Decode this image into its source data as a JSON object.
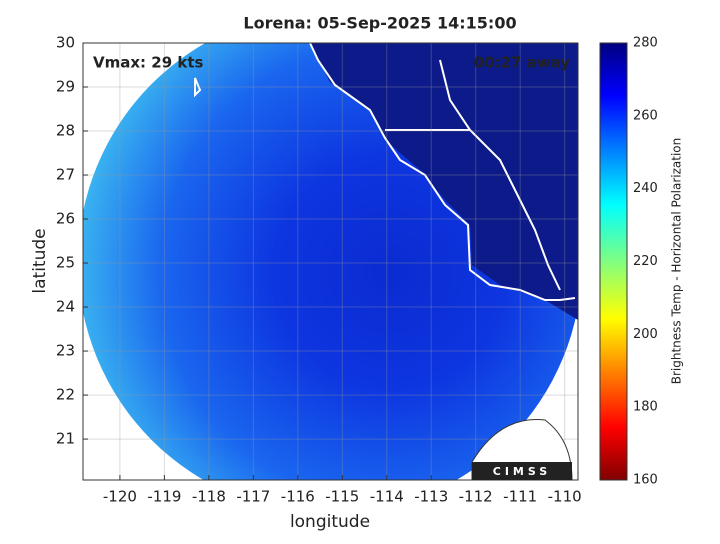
{
  "chart_data": {
    "type": "map",
    "title": "Lorena: 05-Sep-2025 14:15:00",
    "annotations": [
      "Vmax: 29 kts",
      "00:27 away"
    ],
    "x_label": "longitude",
    "y_label": "latitude",
    "xlim": [
      -120.83,
      -109.7
    ],
    "ylim": [
      20.07,
      30
    ],
    "xticks": [
      -120,
      -119,
      -118,
      -117,
      -116,
      -115,
      -114,
      -113,
      -112,
      -111,
      -110
    ],
    "yticks": [
      21,
      22,
      23,
      24,
      25,
      26,
      27,
      28,
      29,
      30
    ],
    "grid": true,
    "colorbar": {
      "label": "Brightness Temp - Horizontal Polarization",
      "lim": [
        160,
        280
      ],
      "ticks": [
        160,
        180,
        200,
        220,
        240,
        260,
        280
      ]
    },
    "logo": "CIMSS"
  }
}
